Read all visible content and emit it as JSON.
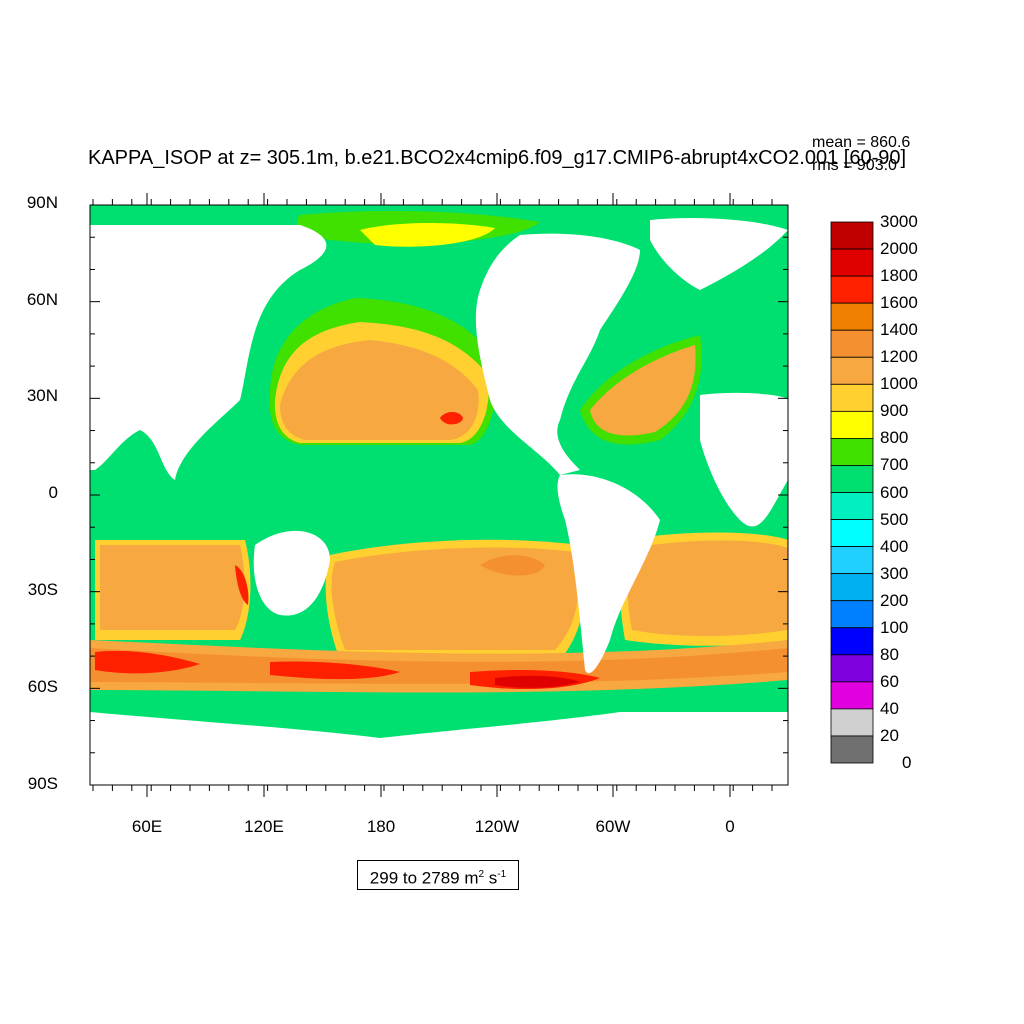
{
  "title": "KAPPA_ISOP at z= 305.1m, b.e21.BCO2x4cmip6.f09_g17.CMIP6-abrupt4xCO2.001 [60-90]",
  "stats": {
    "mean": "mean = 860.6",
    "rms": "rms = 903.0"
  },
  "range_text": {
    "prefix": "299 to 2789 m",
    "sup1": "2",
    "mid": " s",
    "sup2": "-1"
  },
  "y_axis_labels": [
    "90N",
    "60N",
    "30N",
    "0",
    "30S",
    "60S",
    "90S"
  ],
  "x_axis_labels": [
    "60E",
    "120E",
    "180",
    "120W",
    "60W",
    "0"
  ],
  "colorbar": {
    "labels": [
      "3000",
      "2000",
      "1800",
      "1600",
      "1400",
      "1200",
      "1000",
      "900",
      "800",
      "700",
      "600",
      "500",
      "400",
      "300",
      "200",
      "100",
      "80",
      "60",
      "40",
      "20",
      "0"
    ],
    "colors": [
      "#c00000",
      "#e00000",
      "#ff2000",
      "#f08000",
      "#f59030",
      "#f8a840",
      "#ffd030",
      "#ffff00",
      "#40e000",
      "#00e070",
      "#00f0c0",
      "#00ffff",
      "#20d0ff",
      "#00b0f0",
      "#0080ff",
      "#0000ff",
      "#8000e0",
      "#e000e0",
      "#d0d0d0",
      "#707070"
    ]
  },
  "map_colors": {
    "land": "#ffffff",
    "c600": "#00e070",
    "c700": "#40e000",
    "c800": "#ffff00",
    "c900": "#ffd030",
    "c1000": "#f8a840",
    "c1200": "#f59030",
    "c1400": "#f08000",
    "c1600": "#ff2000",
    "c1800": "#e00000"
  }
}
